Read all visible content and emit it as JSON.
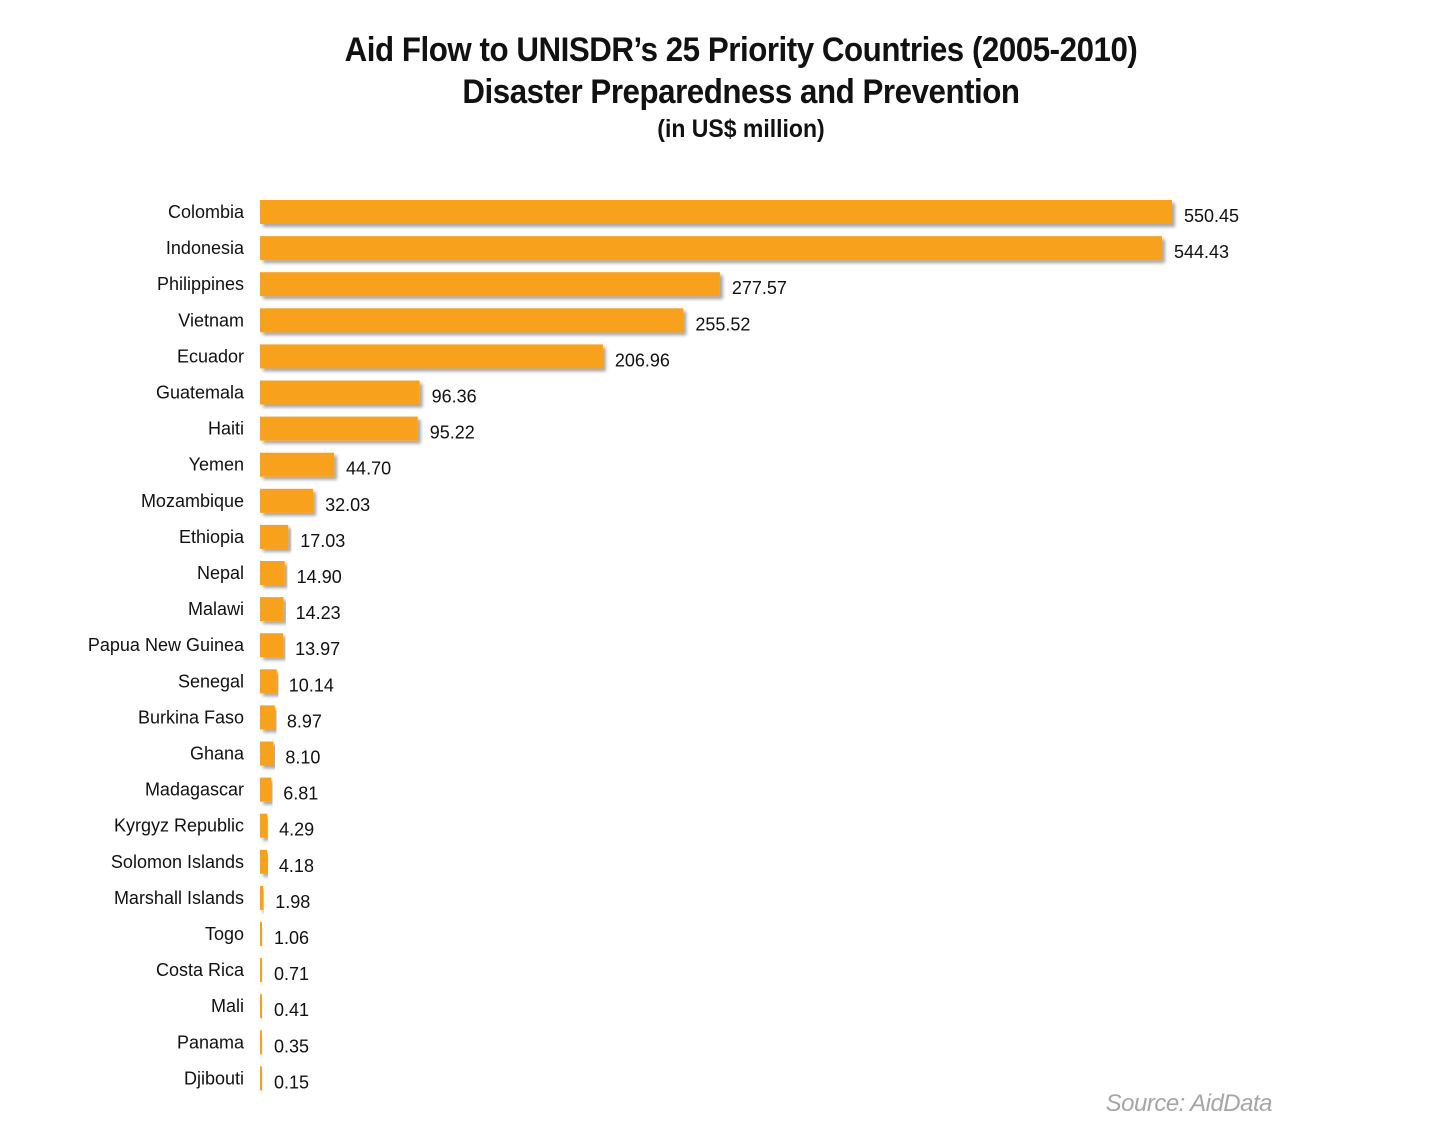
{
  "chart_data": {
    "type": "bar",
    "orientation": "horizontal",
    "title": "Aid Flow to UNISDR’s 25 Priority Countries (2005-2010)",
    "subtitle": "Disaster Preparedness and Prevention",
    "unit": "(in US$ million)",
    "source": "Source: AidData",
    "bar_color": "#F7A11F",
    "grid": false,
    "legend": "none",
    "xlim": [
      0,
      550.45
    ],
    "categories": [
      "Colombia",
      "Indonesia",
      "Philippines",
      "Vietnam",
      "Ecuador",
      "Guatemala",
      "Haiti",
      "Yemen",
      "Mozambique",
      "Ethiopia",
      "Nepal",
      "Malawi",
      "Papua New Guinea",
      "Senegal",
      "Burkina Faso",
      "Ghana",
      "Madagascar",
      "Kyrgyz Republic",
      "Solomon Islands",
      "Marshall Islands",
      "Togo",
      "Costa Rica",
      "Mali",
      "Panama",
      "Djibouti"
    ],
    "values": [
      550.45,
      544.43,
      277.57,
      255.52,
      206.96,
      96.36,
      95.22,
      44.7,
      32.03,
      17.03,
      14.9,
      14.23,
      13.97,
      10.14,
      8.97,
      8.1,
      6.81,
      4.29,
      4.18,
      1.98,
      1.06,
      0.71,
      0.41,
      0.35,
      0.15
    ],
    "value_labels": [
      "550.45",
      "544.43",
      "277.57",
      "255.52",
      "206.96",
      "96.36",
      "95.22",
      "44.70",
      "32.03",
      "17.03",
      "14.90",
      "14.23",
      "13.97",
      "10.14",
      "8.97",
      "8.10",
      "6.81",
      "4.29",
      "4.18",
      "1.98",
      "1.06",
      "0.71",
      "0.41",
      "0.35",
      "0.15"
    ]
  }
}
